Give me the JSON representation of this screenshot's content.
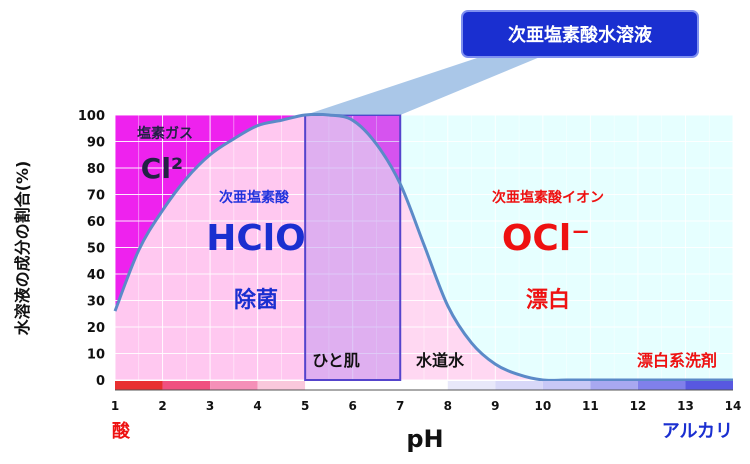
{
  "chart_data": {
    "type": "area",
    "title": "次亜塩素酸水溶液",
    "ylabel": "水溶液の成分の割合(%)",
    "xlabel": "pH",
    "xlim": [
      1,
      14
    ],
    "ylim": [
      0,
      100
    ],
    "x_ticks": [
      "1",
      "2",
      "3",
      "4",
      "5",
      "6",
      "7",
      "8",
      "9",
      "10",
      "11",
      "12",
      "13",
      "14"
    ],
    "y_ticks": [
      "0",
      "10",
      "20",
      "30",
      "40",
      "50",
      "60",
      "70",
      "80",
      "90",
      "100"
    ],
    "x_start_label": "酸",
    "x_end_label": "アルカリ",
    "series": [
      {
        "x": [
          1,
          1.5,
          2,
          2.5,
          3,
          3.5,
          4,
          4.5,
          5,
          5.5,
          6,
          6.5,
          7,
          7.5,
          8,
          8.5,
          9,
          9.5,
          10,
          10.5,
          11,
          12,
          13,
          14
        ],
        "values": [
          26,
          49,
          64,
          76,
          85,
          91,
          96,
          98,
          100,
          100,
          98,
          89,
          74,
          51,
          28,
          14,
          6,
          2,
          0,
          0,
          0,
          0,
          0,
          0
        ]
      }
    ],
    "regions": {
      "cl2": {
        "label": "塩素ガス",
        "formula": "Cl²"
      },
      "hclo": {
        "label": "次亜塩素酸",
        "formula": "HClO",
        "use": "除菌"
      },
      "ocl": {
        "label": "次亜塩素酸イオン",
        "formula": "OCl⁻",
        "use": "漂白"
      }
    },
    "annotations": {
      "skin": "ひと肌",
      "tap": "水道水",
      "bleach": "漂白系洗剤"
    },
    "colors": {
      "acid_region": "#ee22ee",
      "hclo_region": "#ffc8f0",
      "ocl_region": "#e6ffff",
      "curve": "#5b8ac8",
      "acid_text": "#ee1111",
      "alkali_text": "#1a2fd0",
      "title_box": "#1a2fd0"
    }
  }
}
